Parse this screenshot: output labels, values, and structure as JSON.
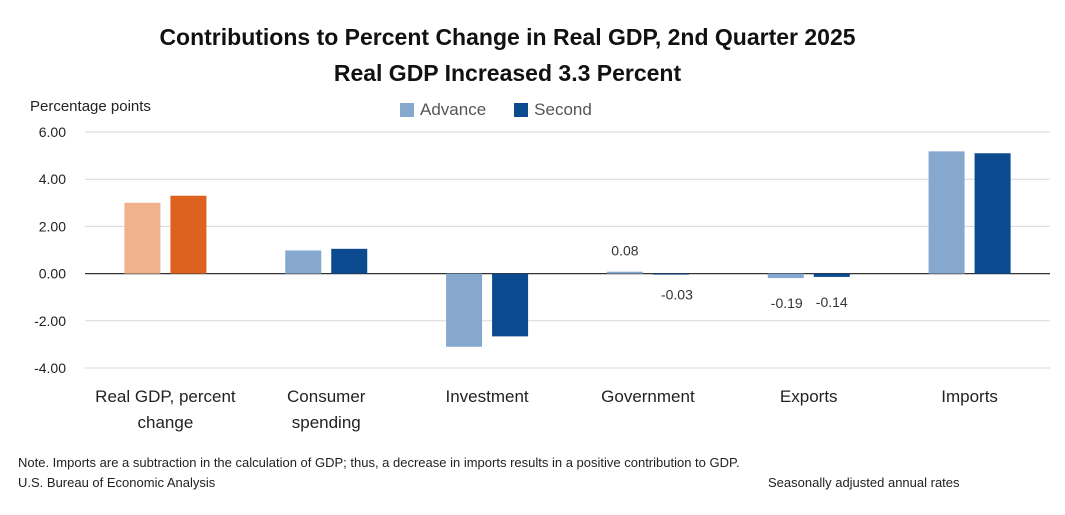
{
  "title_line1": "Contributions to Percent Change in Real GDP, 2nd Quarter 2025",
  "title_line2": "Real GDP Increased 3.3 Percent",
  "footer": {
    "note": "Note. Imports are a subtraction in the calculation of GDP; thus, a decrease in imports results in a positive contribution to GDP.",
    "source": "U.S. Bureau of Economic Analysis",
    "rates": "Seasonally adjusted annual rates"
  },
  "colors": {
    "advance": "#86a8cf",
    "second": "#0b4a8f",
    "gdp_advance": "#f0b28c",
    "gdp_second": "#dd6220",
    "grid": "#d9d9d9",
    "axis": "#333333"
  },
  "chart_data": {
    "type": "bar",
    "title": "Contributions to Percent Change in Real GDP, 2nd Quarter 2025",
    "subtitle": "Real GDP Increased 3.3 Percent",
    "ylabel": "Percentage points",
    "xlabel": "",
    "ylim": [
      -4,
      6
    ],
    "yticks": [
      "6.00",
      "4.00",
      "2.00",
      "0.00",
      "-2.00",
      "-4.00"
    ],
    "ytick_values": [
      6,
      4,
      2,
      0,
      -2,
      -4
    ],
    "legend": [
      "Advance",
      "Second"
    ],
    "legend_position": "top-center",
    "grid": true,
    "categories": [
      [
        "Real GDP, percent",
        "change"
      ],
      [
        "Consumer",
        "spending"
      ],
      [
        "Investment"
      ],
      [
        "Government"
      ],
      [
        "Exports"
      ],
      [
        "Imports"
      ]
    ],
    "series": [
      {
        "name": "Advance",
        "values": [
          3.0,
          0.98,
          -3.1,
          0.08,
          -0.19,
          5.18
        ]
      },
      {
        "name": "Second",
        "values": [
          3.3,
          1.05,
          -2.66,
          -0.03,
          -0.14,
          5.1
        ]
      }
    ],
    "data_labels": [
      {
        "category_index": 3,
        "series": 0,
        "text": "0.08"
      },
      {
        "category_index": 3,
        "series": 1,
        "text": "-0.03"
      },
      {
        "category_index": 4,
        "series": 0,
        "text": "-0.19"
      },
      {
        "category_index": 4,
        "series": 1,
        "text": "-0.14"
      }
    ]
  }
}
